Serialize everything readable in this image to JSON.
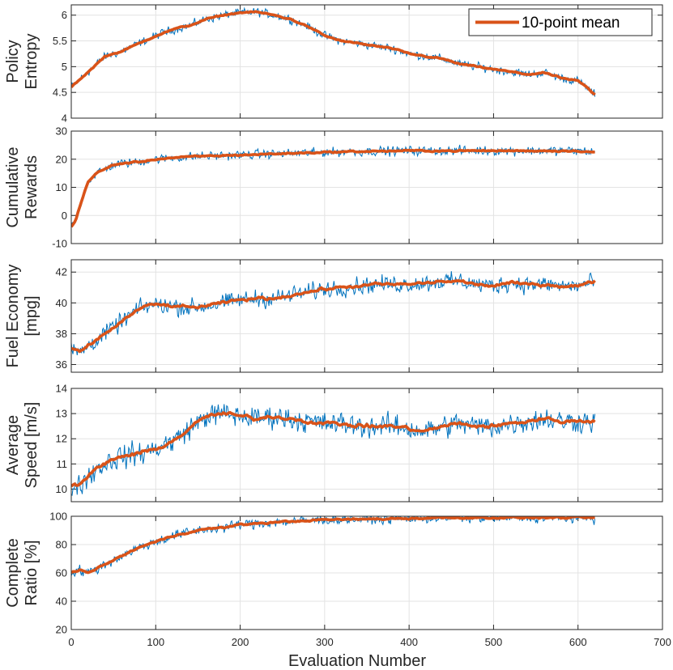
{
  "figure": {
    "xlabel": "Evaluation Number",
    "x_ticks": [
      0,
      100,
      200,
      300,
      400,
      500,
      600,
      700
    ],
    "xlim": [
      0,
      700
    ],
    "n_points": 620,
    "grid": true,
    "raw_color": "#0072BD",
    "mean_color": "#D95319",
    "legend": {
      "label": "10-point mean",
      "placement": "top-right",
      "panel": 0
    }
  },
  "chart_data": [
    {
      "type": "line",
      "ylabel_lines": [
        "Policy",
        "Entropy"
      ],
      "ylim": [
        4,
        6.2
      ],
      "y_ticks": [
        4,
        4.5,
        5,
        5.5,
        6
      ],
      "y_tick_labels": [
        "4",
        "4.5",
        "5",
        "5.5",
        "6"
      ],
      "series": [
        {
          "name": "raw",
          "x": [
            0,
            20,
            40,
            60,
            80,
            100,
            120,
            140,
            160,
            180,
            200,
            220,
            240,
            260,
            280,
            300,
            320,
            340,
            360,
            380,
            400,
            420,
            440,
            460,
            480,
            500,
            520,
            540,
            560,
            580,
            600,
            610,
            620
          ],
          "y": [
            4.6,
            4.9,
            5.2,
            5.3,
            5.45,
            5.6,
            5.72,
            5.8,
            5.92,
            6.0,
            6.05,
            6.06,
            6.0,
            5.92,
            5.78,
            5.6,
            5.5,
            5.45,
            5.4,
            5.35,
            5.25,
            5.2,
            5.15,
            5.05,
            5.0,
            4.95,
            4.9,
            4.85,
            4.88,
            4.78,
            4.72,
            4.6,
            4.45
          ],
          "noise": 0.08
        },
        {
          "name": "10-point mean",
          "x": [
            0,
            20,
            40,
            60,
            80,
            100,
            120,
            140,
            160,
            180,
            200,
            220,
            240,
            260,
            280,
            300,
            320,
            340,
            360,
            380,
            400,
            420,
            440,
            460,
            480,
            500,
            520,
            540,
            560,
            580,
            600,
            610,
            620
          ],
          "y": [
            4.6,
            4.9,
            5.2,
            5.3,
            5.45,
            5.6,
            5.72,
            5.8,
            5.92,
            6.0,
            6.05,
            6.06,
            6.0,
            5.92,
            5.78,
            5.6,
            5.5,
            5.45,
            5.4,
            5.35,
            5.25,
            5.2,
            5.15,
            5.05,
            5.0,
            4.95,
            4.9,
            4.85,
            4.88,
            4.78,
            4.72,
            4.6,
            4.45
          ]
        }
      ]
    },
    {
      "type": "line",
      "ylabel_lines": [
        "Cumulative",
        "Rewards"
      ],
      "ylim": [
        -10,
        30
      ],
      "y_ticks": [
        -10,
        0,
        10,
        20,
        30
      ],
      "y_tick_labels": [
        "-10",
        "0",
        "10",
        "20",
        "30"
      ],
      "series": [
        {
          "name": "raw",
          "x": [
            0,
            5,
            10,
            15,
            20,
            30,
            40,
            50,
            60,
            80,
            100,
            120,
            150,
            200,
            250,
            300,
            350,
            400,
            450,
            500,
            550,
            600,
            620
          ],
          "y": [
            -4,
            -2,
            3,
            8,
            12,
            15,
            16.5,
            18,
            18.5,
            19,
            20,
            20.5,
            21,
            21.5,
            22,
            22.5,
            22.8,
            23,
            23,
            23,
            23,
            23,
            22.5
          ],
          "noise": 1.6
        },
        {
          "name": "10-point mean",
          "x": [
            0,
            5,
            10,
            15,
            20,
            30,
            40,
            50,
            60,
            80,
            100,
            120,
            150,
            200,
            250,
            300,
            350,
            400,
            450,
            500,
            550,
            600,
            620
          ],
          "y": [
            -4,
            -2,
            3,
            8,
            12,
            15,
            16.5,
            18,
            18.5,
            19,
            20,
            20.5,
            21,
            21.5,
            22,
            22.5,
            22.8,
            23,
            23,
            23,
            23,
            23,
            22.5
          ]
        }
      ]
    },
    {
      "type": "line",
      "ylabel_lines": [
        "Fuel Economy",
        "[mpg]"
      ],
      "ylim": [
        35.5,
        42.8
      ],
      "y_ticks": [
        36,
        38,
        40,
        42
      ],
      "y_tick_labels": [
        "36",
        "38",
        "40",
        "42"
      ],
      "series": [
        {
          "name": "raw",
          "x": [
            0,
            10,
            20,
            30,
            40,
            50,
            60,
            70,
            80,
            90,
            100,
            120,
            140,
            160,
            180,
            200,
            220,
            240,
            260,
            280,
            300,
            320,
            340,
            360,
            380,
            400,
            420,
            440,
            460,
            480,
            500,
            520,
            540,
            560,
            580,
            600,
            620
          ],
          "y": [
            37.0,
            36.8,
            37.2,
            37.6,
            38.0,
            38.4,
            38.8,
            39.2,
            39.6,
            39.8,
            39.9,
            39.8,
            39.7,
            39.8,
            40.0,
            40.2,
            40.3,
            40.3,
            40.5,
            40.7,
            40.9,
            41.0,
            41.1,
            41.2,
            41.2,
            41.2,
            41.3,
            41.4,
            41.4,
            41.2,
            41.1,
            41.3,
            41.2,
            41.2,
            41.1,
            41.1,
            41.4
          ],
          "noise": 0.55
        },
        {
          "name": "10-point mean",
          "x": [
            0,
            10,
            20,
            30,
            40,
            50,
            60,
            70,
            80,
            90,
            100,
            120,
            140,
            160,
            180,
            200,
            220,
            240,
            260,
            280,
            300,
            320,
            340,
            360,
            380,
            400,
            420,
            440,
            460,
            480,
            500,
            520,
            540,
            560,
            580,
            600,
            620
          ],
          "y": [
            37.0,
            36.8,
            37.2,
            37.6,
            38.0,
            38.4,
            38.8,
            39.2,
            39.6,
            39.8,
            39.9,
            39.8,
            39.7,
            39.8,
            40.0,
            40.2,
            40.3,
            40.3,
            40.5,
            40.7,
            40.9,
            41.0,
            41.1,
            41.2,
            41.2,
            41.2,
            41.3,
            41.4,
            41.4,
            41.2,
            41.1,
            41.3,
            41.2,
            41.2,
            41.1,
            41.1,
            41.4
          ]
        }
      ]
    },
    {
      "type": "line",
      "ylabel_lines": [
        "Average",
        "Speed [m/s]"
      ],
      "ylim": [
        9.5,
        14
      ],
      "y_ticks": [
        10,
        11,
        12,
        13,
        14
      ],
      "y_tick_labels": [
        "10",
        "11",
        "12",
        "13",
        "14"
      ],
      "series": [
        {
          "name": "raw",
          "x": [
            0,
            10,
            20,
            30,
            40,
            50,
            60,
            80,
            100,
            120,
            140,
            160,
            180,
            200,
            220,
            240,
            260,
            280,
            300,
            320,
            340,
            360,
            380,
            400,
            420,
            440,
            460,
            480,
            500,
            520,
            540,
            560,
            580,
            600,
            620
          ],
          "y": [
            10.1,
            10.2,
            10.5,
            10.8,
            11.0,
            11.2,
            11.3,
            11.4,
            11.6,
            11.9,
            12.4,
            12.9,
            13.0,
            12.9,
            12.8,
            12.9,
            12.8,
            12.7,
            12.6,
            12.6,
            12.5,
            12.5,
            12.5,
            12.4,
            12.3,
            12.5,
            12.6,
            12.5,
            12.5,
            12.6,
            12.7,
            12.8,
            12.7,
            12.7,
            12.7
          ],
          "noise": 0.45
        },
        {
          "name": "10-point mean",
          "x": [
            0,
            10,
            20,
            30,
            40,
            50,
            60,
            80,
            100,
            120,
            140,
            160,
            180,
            200,
            220,
            240,
            260,
            280,
            300,
            320,
            340,
            360,
            380,
            400,
            420,
            440,
            460,
            480,
            500,
            520,
            540,
            560,
            580,
            600,
            620
          ],
          "y": [
            10.1,
            10.2,
            10.5,
            10.8,
            11.0,
            11.2,
            11.3,
            11.4,
            11.6,
            11.9,
            12.4,
            12.9,
            13.0,
            12.9,
            12.8,
            12.9,
            12.8,
            12.7,
            12.6,
            12.6,
            12.5,
            12.5,
            12.5,
            12.4,
            12.3,
            12.5,
            12.6,
            12.5,
            12.5,
            12.6,
            12.7,
            12.8,
            12.7,
            12.7,
            12.7
          ]
        }
      ]
    },
    {
      "type": "line",
      "ylabel_lines": [
        "Complete",
        "Ratio [%]"
      ],
      "ylim": [
        20,
        100
      ],
      "y_ticks": [
        20,
        40,
        60,
        80,
        100
      ],
      "y_tick_labels": [
        "20",
        "40",
        "60",
        "80",
        "100"
      ],
      "series": [
        {
          "name": "raw",
          "x": [
            0,
            5,
            10,
            20,
            30,
            40,
            50,
            60,
            70,
            80,
            100,
            120,
            140,
            160,
            180,
            200,
            220,
            250,
            280,
            300,
            350,
            400,
            450,
            500,
            550,
            600,
            620
          ],
          "y": [
            60,
            61,
            62,
            60,
            63,
            66,
            69,
            72,
            75,
            78,
            82,
            86,
            89,
            91,
            92,
            94,
            95,
            96,
            97,
            97.5,
            98,
            98.5,
            99,
            99,
            99,
            99,
            99
          ],
          "noise": 3.5
        },
        {
          "name": "10-point mean",
          "x": [
            0,
            5,
            10,
            20,
            30,
            40,
            50,
            60,
            70,
            80,
            100,
            120,
            140,
            160,
            180,
            200,
            220,
            250,
            280,
            300,
            350,
            400,
            450,
            500,
            550,
            600,
            620
          ],
          "y": [
            60,
            61,
            62,
            60,
            63,
            66,
            69,
            72,
            75,
            78,
            82,
            86,
            89,
            91,
            92,
            94,
            95,
            96,
            97,
            97.5,
            98,
            98.5,
            99,
            99,
            99,
            99,
            99
          ]
        }
      ]
    }
  ]
}
